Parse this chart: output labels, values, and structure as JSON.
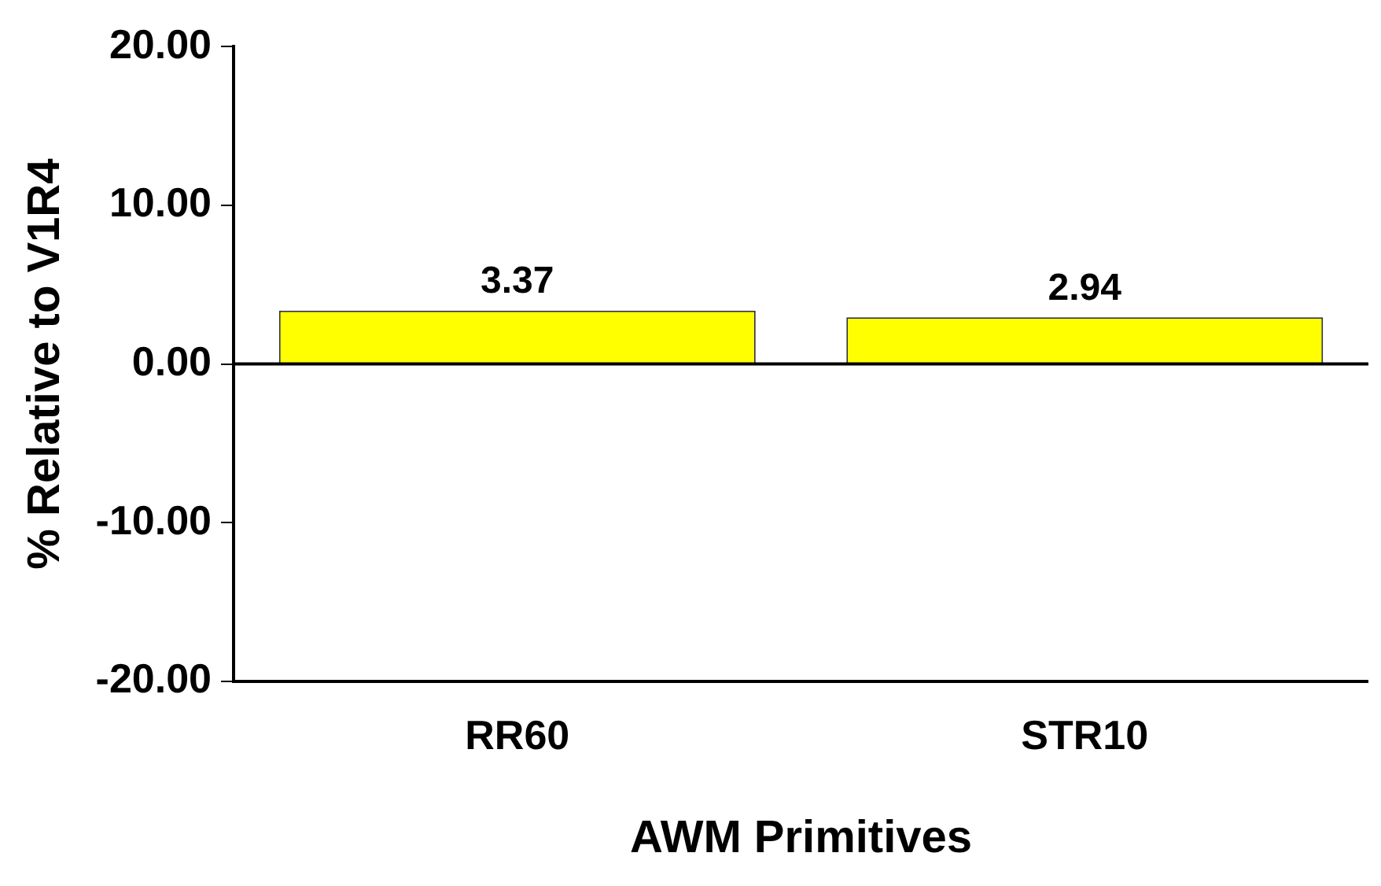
{
  "chart_data": {
    "type": "bar",
    "xlabel": "AWM Primitives",
    "ylabel": "% Relative to V1R4",
    "categories": [
      "RR60",
      "STR10"
    ],
    "series": [
      {
        "color": "#ffff00",
        "values": [
          3.37,
          2.94
        ]
      }
    ],
    "ylim": [
      -20,
      20
    ],
    "yticks": [
      {
        "value": -20,
        "label": "-20.00"
      },
      {
        "value": -10,
        "label": "-10.00"
      },
      {
        "value": 0,
        "label": "0.00"
      },
      {
        "value": 10,
        "label": "10.00"
      },
      {
        "value": 20,
        "label": "20.00"
      }
    ],
    "ref_lines": [
      {
        "axis": "y",
        "value": 0,
        "color": "#000000"
      }
    ],
    "data_labels": true,
    "grid": false,
    "legend": false
  }
}
